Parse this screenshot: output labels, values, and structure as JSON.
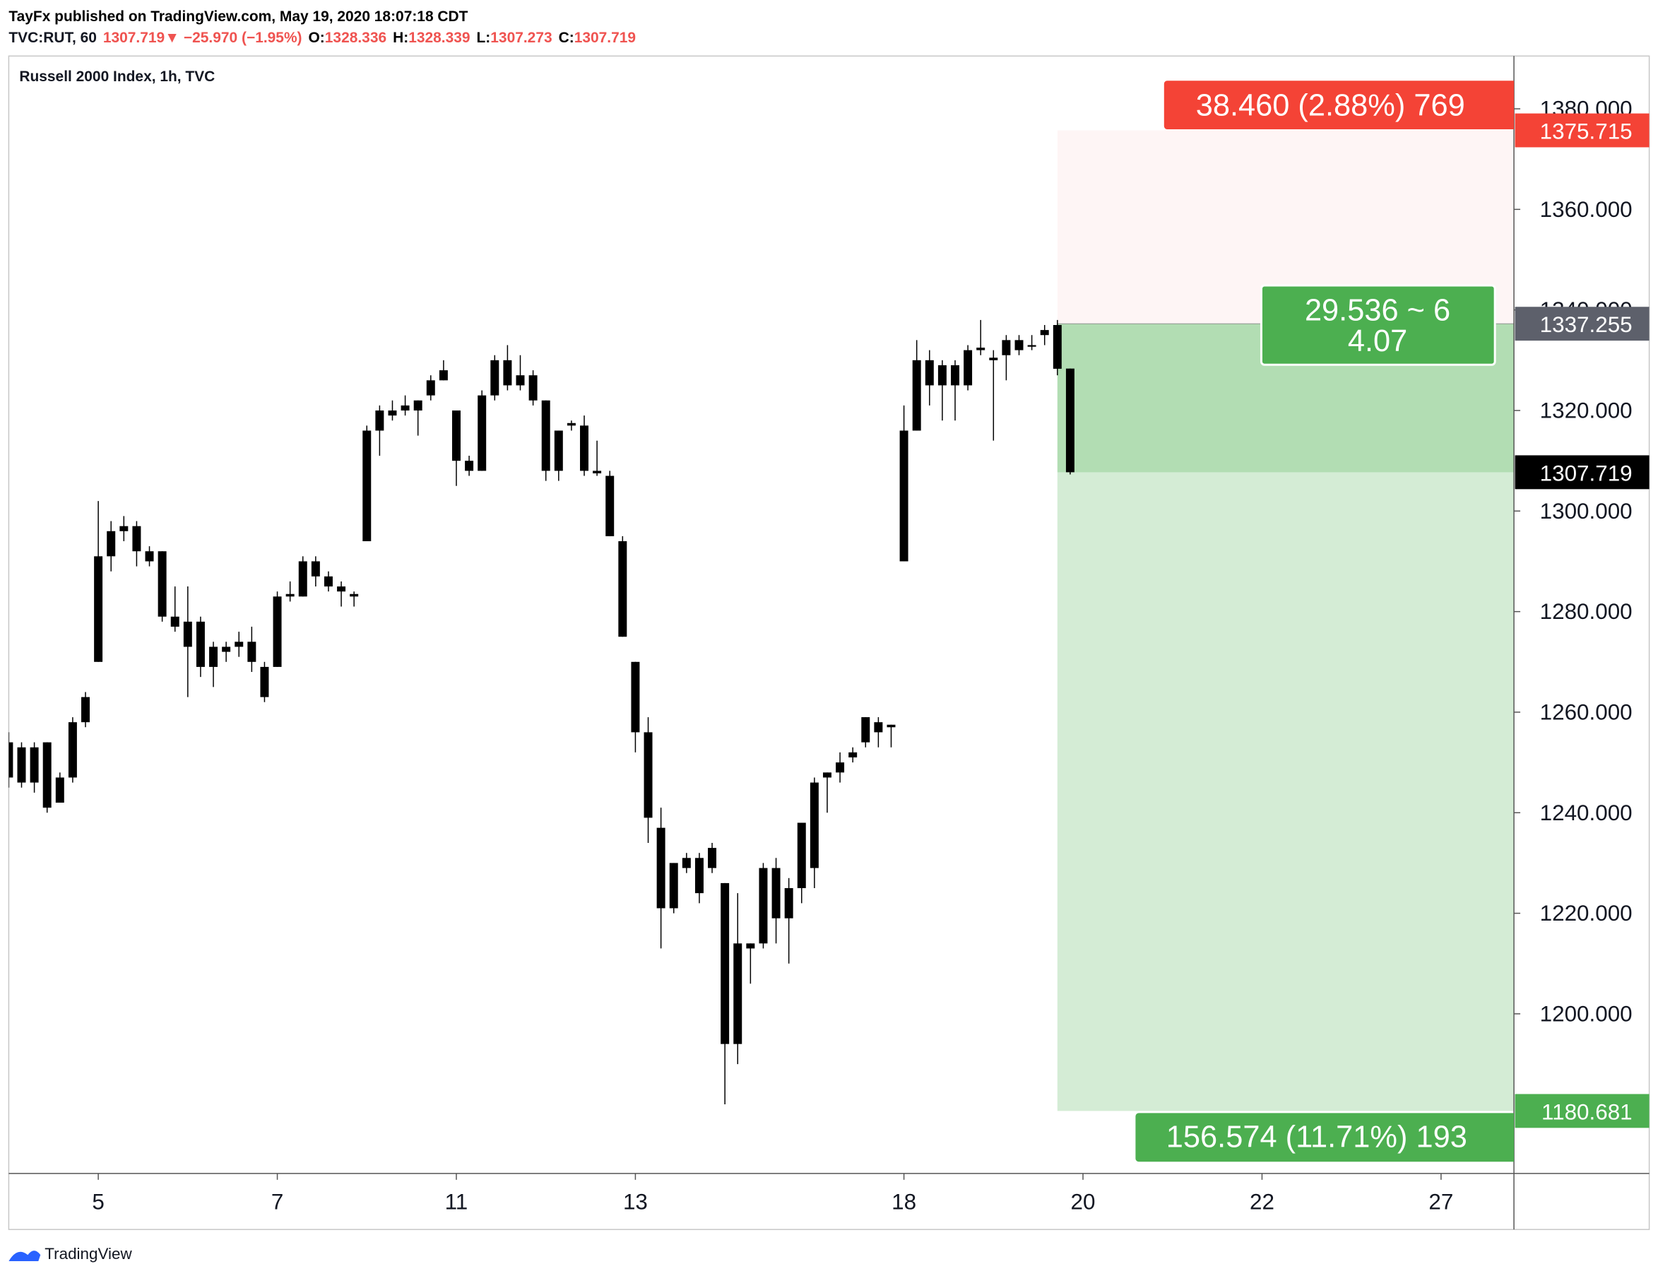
{
  "header": {
    "publisher": "TayFx published on TradingView.com, May 19, 2020 18:07:18 CDT",
    "symbol": "TVC:RUT, 60",
    "arrow": "▼",
    "change": "−25.970 (−1.95%)",
    "o_label": "O:",
    "h_label": "H:",
    "l_label": "L:",
    "c_label": "C:"
  },
  "footer": {
    "brand": "TradingView"
  },
  "chart_data": {
    "type": "candlestick",
    "title": "Russell 2000 Index, 1h, TVC",
    "candle_color": "#000000",
    "x": [
      -7,
      -6,
      -5,
      -4,
      -3,
      -2,
      -1,
      0,
      1,
      2,
      3,
      4,
      5,
      6,
      7,
      8,
      9,
      10,
      11,
      12,
      13,
      14,
      15,
      16,
      17,
      18,
      19,
      20,
      21,
      22,
      23,
      24,
      25,
      26,
      27,
      28,
      29,
      30,
      31,
      32,
      33,
      34,
      35,
      36,
      37,
      38,
      39,
      40,
      41,
      42,
      43,
      44,
      45,
      46,
      47,
      48,
      49,
      50,
      51,
      52,
      53,
      54,
      55,
      56,
      57,
      58,
      59,
      60,
      61,
      62,
      63,
      64,
      65,
      66,
      67,
      68,
      69,
      70,
      71,
      72,
      73,
      74,
      75,
      76
    ],
    "open": [
      1247,
      1253,
      1253,
      1254,
      1242,
      1247,
      1258,
      1270,
      1291,
      1296,
      1297,
      1292,
      1292,
      1279,
      1278,
      1278,
      1273,
      1272,
      1274,
      1274,
      1269,
      1269,
      1283,
      1283,
      1290,
      1287,
      1285,
      1283,
      1294,
      1316,
      1320,
      1320,
      1320,
      1323,
      1326,
      1320,
      1310,
      1308,
      1323,
      1330,
      1325,
      1327,
      1322,
      1316,
      1317,
      1317,
      1308,
      1307,
      1294,
      1270,
      1256,
      1237,
      1221,
      1229,
      1231,
      1229,
      1226,
      1214,
      1213,
      1214,
      1229,
      1219,
      1225,
      1229,
      1247,
      1250,
      1251,
      1259,
      1256,
      1257,
      1290,
      1316,
      1330,
      1325,
      1329,
      1325,
      1332,
      1330,
      1331,
      1334,
      1333,
      1336,
      1337,
      1328.336
    ],
    "high": [
      1256,
      1254,
      1254,
      1254,
      1248,
      1259,
      1264,
      1302,
      1298,
      1299,
      1298,
      1293,
      1292,
      1285,
      1285,
      1279,
      1274,
      1274,
      1276,
      1277,
      1270,
      1284,
      1286,
      1291,
      1291,
      1288,
      1286,
      1284,
      1317,
      1321,
      1322,
      1323,
      1322,
      1327,
      1330,
      1320,
      1311,
      1324,
      1331,
      1333,
      1331,
      1328,
      1322,
      1316,
      1318,
      1319,
      1314,
      1308,
      1295,
      1270,
      1259,
      1241,
      1230,
      1232,
      1232,
      1234,
      1226,
      1224,
      1214,
      1230,
      1231,
      1227,
      1238,
      1247,
      1248,
      1252,
      1253,
      1259,
      1259,
      1257.5,
      1321,
      1334,
      1332,
      1330,
      1330,
      1333,
      1338,
      1332,
      1335,
      1335,
      1335,
      1337,
      1338,
      1328.339
    ],
    "low": [
      1245,
      1245,
      1244,
      1240,
      1242,
      1246,
      1257,
      1270,
      1288,
      1294,
      1289,
      1289,
      1278,
      1276,
      1263,
      1267,
      1265,
      1270,
      1271,
      1268,
      1262,
      1269,
      1282,
      1283,
      1285,
      1284,
      1281,
      1281,
      1294,
      1311,
      1318,
      1319,
      1315,
      1322,
      1326,
      1305,
      1307,
      1308,
      1322,
      1324,
      1324,
      1321,
      1306,
      1306,
      1316,
      1307,
      1307,
      1295,
      1275,
      1252,
      1234,
      1213,
      1220,
      1228,
      1222,
      1228,
      1182,
      1190,
      1206,
      1213,
      1214,
      1210,
      1222,
      1225,
      1240,
      1246,
      1250,
      1253,
      1253,
      1253,
      1290,
      1316,
      1321,
      1318,
      1318,
      1324,
      1331,
      1314,
      1326,
      1331,
      1332,
      1333,
      1327,
      1307.273
    ],
    "close": [
      1254,
      1246,
      1246,
      1241,
      1247,
      1258,
      1263,
      1291,
      1296,
      1297,
      1292,
      1290,
      1279,
      1277,
      1273,
      1269,
      1269,
      1273,
      1273,
      1270,
      1263,
      1283,
      1283.5,
      1290,
      1287,
      1285,
      1284,
      1283.5,
      1316,
      1320,
      1319,
      1321,
      1322,
      1326,
      1328,
      1310,
      1308,
      1323,
      1330,
      1325,
      1327,
      1322,
      1308,
      1308,
      1317.5,
      1308,
      1307.5,
      1295,
      1275,
      1256,
      1239,
      1221,
      1230,
      1231,
      1224,
      1233,
      1194,
      1194,
      1214,
      1229,
      1219,
      1225,
      1238,
      1246,
      1248,
      1248,
      1252,
      1254,
      1258,
      1257.5,
      1316,
      1330,
      1325,
      1329,
      1325,
      1332,
      1332.5,
      1330.5,
      1334,
      1332,
      1333,
      1335,
      1328.3,
      1307.719
    ],
    "xlim": [
      -7,
      110.7
    ],
    "xticks": [
      {
        "value": 0,
        "label": "5"
      },
      {
        "value": 14,
        "label": "7"
      },
      {
        "value": 28,
        "label": "11"
      },
      {
        "value": 42,
        "label": "13"
      },
      {
        "value": 63,
        "label": "18"
      },
      {
        "value": 77,
        "label": "20"
      },
      {
        "value": 91,
        "label": "22"
      },
      {
        "value": 105,
        "label": "27"
      }
    ],
    "ylim": [
      1168.25,
      1390.5
    ],
    "yticks": [
      {
        "value": 1200,
        "label": "1200.000"
      },
      {
        "value": 1220,
        "label": "1220.000"
      },
      {
        "value": 1240,
        "label": "1240.000"
      },
      {
        "value": 1260,
        "label": "1260.000"
      },
      {
        "value": 1280,
        "label": "1280.000"
      },
      {
        "value": 1300,
        "label": "1300.000"
      },
      {
        "value": 1320,
        "label": "1320.000"
      },
      {
        "value": 1340,
        "label": "1340.000"
      },
      {
        "value": 1360,
        "label": "1360.000"
      },
      {
        "value": 1380,
        "label": "1380.000"
      }
    ],
    "grid": false,
    "position": {
      "side": "short",
      "start_x": 75,
      "entry": 1337.255,
      "stop": 1375.715,
      "target": 1180.681,
      "stop_color": "#f44336",
      "target_color": "#4caf50",
      "risk_label": "38.460 (2.88%) 769",
      "ratio_label": [
        "29.536 ~ 6",
        "4.07"
      ],
      "reward_label": "156.574 (11.71%) 193"
    }
  }
}
